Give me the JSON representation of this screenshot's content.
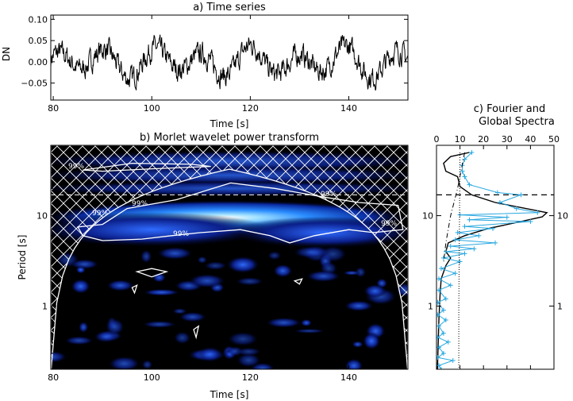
{
  "chart_data": [
    {
      "id": "a",
      "type": "line",
      "title": "a) Time series",
      "xlabel": "Time [s]",
      "ylabel": "DN",
      "xlim": [
        79.5,
        152
      ],
      "ylim": [
        -0.09,
        0.11
      ],
      "xticks": [
        80,
        100,
        120,
        140
      ],
      "yticks": [
        -0.05,
        0.0,
        0.05,
        0.1
      ],
      "ytick_labels": [
        "−0.05",
        "0.00",
        "0.05",
        "0.10"
      ],
      "color": "#000000"
    },
    {
      "id": "b",
      "type": "heatmap",
      "title": "b) Morlet wavelet power transform",
      "xlabel": "Time [s]",
      "ylabel": "Period [s]",
      "xlim": [
        79.5,
        152
      ],
      "ylim_log": [
        0.2,
        60
      ],
      "xticks": [
        80,
        100,
        120,
        140
      ],
      "yticks": [
        1,
        10
      ],
      "significance_label": "99%",
      "dominant_period": 9.5,
      "dashed_period": 17,
      "colors": [
        "#000000",
        "#0a1a7a",
        "#1f4bff",
        "#5fbfff",
        "#ffffff"
      ]
    },
    {
      "id": "c",
      "type": "line",
      "title_line1": "c) Fourier and",
      "title_line2": "Global Spectra",
      "xlim": [
        0,
        50
      ],
      "xticks": [
        0,
        10,
        20,
        30,
        40,
        50
      ],
      "yticks": [
        1,
        10
      ],
      "series": [
        {
          "color": "#000000",
          "style": "solid",
          "kind": "global",
          "points": [
            [
              14,
              50
            ],
            [
              6,
              45
            ],
            [
              3,
              38
            ],
            [
              4,
              31
            ],
            [
              9,
              27
            ],
            [
              10,
              21
            ],
            [
              15,
              17
            ],
            [
              25,
              14
            ],
            [
              38,
              12
            ],
            [
              47,
              10.8
            ],
            [
              45,
              9.7
            ],
            [
              35,
              8.5
            ],
            [
              22,
              7.2
            ],
            [
              12,
              6
            ],
            [
              5,
              5
            ],
            [
              4,
              4
            ],
            [
              6,
              3.4
            ],
            [
              4,
              2.8
            ],
            [
              2,
              2
            ],
            [
              1.5,
              1.3
            ],
            [
              1,
              0.7
            ],
            [
              0.6,
              0.3
            ],
            [
              0.4,
              0.2
            ]
          ]
        },
        {
          "color": "#29a8e0",
          "style": "solid",
          "kind": "fourier",
          "points": [
            [
              15,
              50
            ],
            [
              12,
              42
            ],
            [
              11,
              36
            ],
            [
              11,
              31
            ],
            [
              12,
              27
            ],
            [
              14,
              22
            ],
            [
              26,
              18
            ],
            [
              36,
              17
            ],
            [
              27,
              14
            ],
            [
              34,
              12
            ],
            [
              43,
              10.8
            ],
            [
              10,
              10.2
            ],
            [
              30,
              9.6
            ],
            [
              14,
              9
            ],
            [
              40,
              8.6
            ],
            [
              12,
              7.6
            ],
            [
              24,
              7.2
            ],
            [
              9,
              6.5
            ],
            [
              18,
              6
            ],
            [
              8,
              5.4
            ],
            [
              25,
              5
            ],
            [
              6,
              4.6
            ],
            [
              16,
              4.3
            ],
            [
              4,
              4
            ],
            [
              12,
              3.8
            ],
            [
              3,
              3.4
            ],
            [
              10,
              3.1
            ],
            [
              2,
              2.6
            ],
            [
              8,
              2.3
            ],
            [
              1,
              2
            ],
            [
              6,
              1.7
            ],
            [
              1,
              1.5
            ],
            [
              4,
              1.2
            ],
            [
              0.5,
              1.1
            ],
            [
              3,
              0.9
            ],
            [
              0.5,
              0.8
            ],
            [
              4,
              0.7
            ],
            [
              1,
              0.6
            ],
            [
              3,
              0.5
            ],
            [
              0.5,
              0.45
            ],
            [
              5,
              0.4
            ],
            [
              1,
              0.35
            ],
            [
              3,
              0.3
            ],
            [
              0.5,
              0.27
            ],
            [
              7,
              0.25
            ],
            [
              1,
              0.22
            ],
            [
              2,
              0.2
            ]
          ]
        },
        {
          "color": "#000000",
          "style": "dot",
          "kind": "significance",
          "points": [
            [
              10,
              50
            ],
            [
              9.8,
              10
            ],
            [
              9.5,
              1
            ],
            [
              9.5,
              0.2
            ]
          ]
        },
        {
          "color": "#000000",
          "style": "dashdot",
          "kind": "significance",
          "points": [
            [
              12,
              50
            ],
            [
              9,
              20
            ],
            [
              6,
              10
            ],
            [
              4,
              5
            ],
            [
              3,
              3
            ]
          ]
        }
      ],
      "dashed_period": 17
    }
  ]
}
